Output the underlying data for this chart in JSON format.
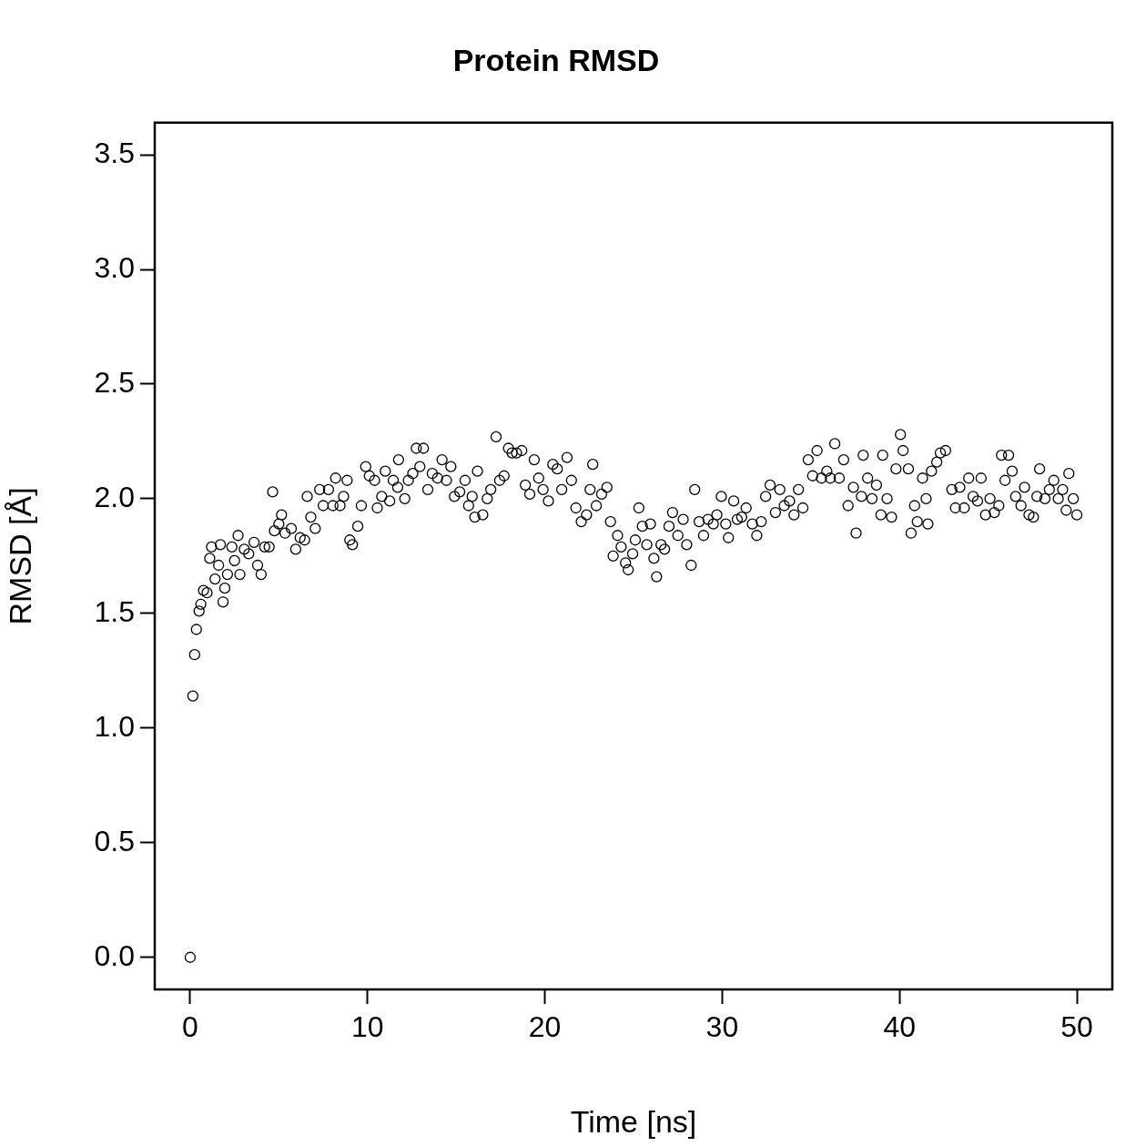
{
  "chart_data": {
    "type": "scatter",
    "title": "Protein RMSD",
    "xlabel": "Time [ns]",
    "ylabel": "RMSD [Å]",
    "color": "#000000",
    "marker": "circle",
    "grid": false,
    "legend": false,
    "xlim": [
      -2,
      52
    ],
    "xticks": [
      0,
      10,
      20,
      30,
      40,
      50
    ],
    "ylim": [
      -0.14,
      3.64
    ],
    "yticks": [
      {
        "value": 0,
        "label": "0.0"
      },
      {
        "value": 0.5,
        "label": "0.5"
      },
      {
        "value": 1,
        "label": "1.0"
      },
      {
        "value": 1.5,
        "label": "1.5"
      },
      {
        "value": 2,
        "label": "2.0"
      },
      {
        "value": 2.5,
        "label": "2.5"
      },
      {
        "value": 3,
        "label": "3.0"
      },
      {
        "value": 3.5,
        "label": "3.5"
      }
    ],
    "x": [
      0,
      0.15,
      0.25,
      0.35,
      0.5,
      0.6,
      0.75,
      0.95,
      1.1,
      1.2,
      1.4,
      1.6,
      1.7,
      1.85,
      1.95,
      2.1,
      2.35,
      2.5,
      2.7,
      2.8,
      3.05,
      3.3,
      3.6,
      3.8,
      4.0,
      4.2,
      4.45,
      4.65,
      4.75,
      5.0,
      5.15,
      5.35,
      5.7,
      5.95,
      6.2,
      6.45,
      6.6,
      6.8,
      7.05,
      7.3,
      7.5,
      7.8,
      8.05,
      8.2,
      8.45,
      8.65,
      8.85,
      9.0,
      9.15,
      9.45,
      9.65,
      9.9,
      10.1,
      10.4,
      10.55,
      10.8,
      11.0,
      11.25,
      11.45,
      11.7,
      11.75,
      12.1,
      12.3,
      12.55,
      12.75,
      12.95,
      13.15,
      13.4,
      13.65,
      13.95,
      14.2,
      14.45,
      14.7,
      14.9,
      15.2,
      15.5,
      15.7,
      15.9,
      16.05,
      16.2,
      16.5,
      16.75,
      16.95,
      17.25,
      17.45,
      17.7,
      17.95,
      18.15,
      18.4,
      18.7,
      18.9,
      19.15,
      19.4,
      19.65,
      19.9,
      20.2,
      20.45,
      20.7,
      20.95,
      21.25,
      21.5,
      21.75,
      22.05,
      22.35,
      22.55,
      22.7,
      22.9,
      23.2,
      23.5,
      23.7,
      23.85,
      24.1,
      24.3,
      24.55,
      24.7,
      24.95,
      25.1,
      25.3,
      25.5,
      25.75,
      25.95,
      26.15,
      26.3,
      26.55,
      26.75,
      27.0,
      27.2,
      27.5,
      27.8,
      28.0,
      28.25,
      28.45,
      28.7,
      28.95,
      29.2,
      29.5,
      29.7,
      29.95,
      30.2,
      30.35,
      30.65,
      30.85,
      31.1,
      31.35,
      31.7,
      31.95,
      32.2,
      32.45,
      32.7,
      33.0,
      33.25,
      33.5,
      33.8,
      34.05,
      34.3,
      34.55,
      34.85,
      35.1,
      35.35,
      35.6,
      35.9,
      36.1,
      36.35,
      36.6,
      36.85,
      37.1,
      37.4,
      37.55,
      37.85,
      37.95,
      38.2,
      38.45,
      38.7,
      38.95,
      39.05,
      39.3,
      39.55,
      39.8,
      40.05,
      40.2,
      40.5,
      40.65,
      40.85,
      41.0,
      41.3,
      41.5,
      41.6,
      41.8,
      42.1,
      42.3,
      42.6,
      42.95,
      43.15,
      43.4,
      43.65,
      43.9,
      44.15,
      44.4,
      44.6,
      44.85,
      45.1,
      45.35,
      45.6,
      45.75,
      45.95,
      46.15,
      46.35,
      46.55,
      46.85,
      47.05,
      47.3,
      47.55,
      47.75,
      47.9,
      48.2,
      48.45,
      48.7,
      48.95,
      49.2,
      49.4,
      49.55,
      49.8,
      50.0
    ],
    "values": [
      0,
      1.14,
      1.32,
      1.43,
      1.51,
      1.54,
      1.6,
      1.59,
      1.74,
      1.79,
      1.65,
      1.71,
      1.8,
      1.55,
      1.61,
      1.67,
      1.79,
      1.73,
      1.84,
      1.67,
      1.78,
      1.76,
      1.81,
      1.71,
      1.67,
      1.79,
      1.79,
      2.03,
      1.86,
      1.89,
      1.93,
      1.85,
      1.87,
      1.78,
      1.83,
      1.82,
      2.01,
      1.92,
      1.87,
      2.04,
      1.97,
      2.04,
      1.97,
      2.09,
      1.97,
      2.01,
      2.08,
      1.82,
      1.8,
      1.88,
      1.97,
      2.14,
      2.1,
      2.08,
      1.96,
      2.01,
      2.12,
      1.99,
      2.08,
      2.05,
      2.17,
      2.0,
      2.08,
      2.11,
      2.22,
      2.14,
      2.22,
      2.04,
      2.11,
      2.09,
      2.17,
      2.08,
      2.14,
      2.01,
      2.03,
      2.08,
      1.97,
      2.01,
      1.92,
      2.12,
      1.93,
      2.0,
      2.04,
      2.27,
      2.08,
      2.1,
      2.22,
      2.2,
      2.2,
      2.21,
      2.06,
      2.02,
      2.17,
      2.09,
      2.04,
      1.99,
      2.15,
      2.13,
      2.04,
      2.18,
      2.08,
      1.96,
      1.9,
      1.93,
      2.04,
      2.15,
      1.97,
      2.02,
      2.05,
      1.9,
      1.75,
      1.84,
      1.79,
      1.72,
      1.69,
      1.76,
      1.82,
      1.96,
      1.88,
      1.8,
      1.89,
      1.74,
      1.66,
      1.8,
      1.78,
      1.88,
      1.94,
      1.84,
      1.91,
      1.8,
      1.71,
      2.04,
      1.9,
      1.84,
      1.91,
      1.89,
      1.93,
      2.01,
      1.89,
      1.83,
      1.99,
      1.91,
      1.92,
      1.96,
      1.89,
      1.84,
      1.9,
      2.01,
      2.06,
      1.94,
      2.04,
      1.97,
      1.99,
      1.93,
      2.04,
      1.96,
      2.17,
      2.1,
      2.21,
      2.09,
      2.12,
      2.09,
      2.24,
      2.09,
      2.17,
      1.97,
      2.05,
      1.85,
      2.01,
      2.19,
      2.09,
      2.0,
      2.06,
      1.93,
      2.19,
      2.0,
      1.92,
      2.13,
      2.28,
      2.21,
      2.13,
      1.85,
      1.97,
      1.9,
      2.09,
      2.0,
      1.89,
      2.12,
      2.16,
      2.2,
      2.21,
      2.04,
      1.96,
      2.05,
      1.96,
      2.09,
      2.01,
      1.99,
      2.09,
      1.93,
      2.0,
      1.94,
      1.97,
      2.19,
      2.08,
      2.19,
      2.12,
      2.01,
      1.97,
      2.05,
      1.93,
      1.92,
      2.01,
      2.13,
      2.0,
      2.04,
      2.08,
      2.0,
      2.04,
      1.95,
      2.11,
      2.0,
      1.93
    ]
  }
}
